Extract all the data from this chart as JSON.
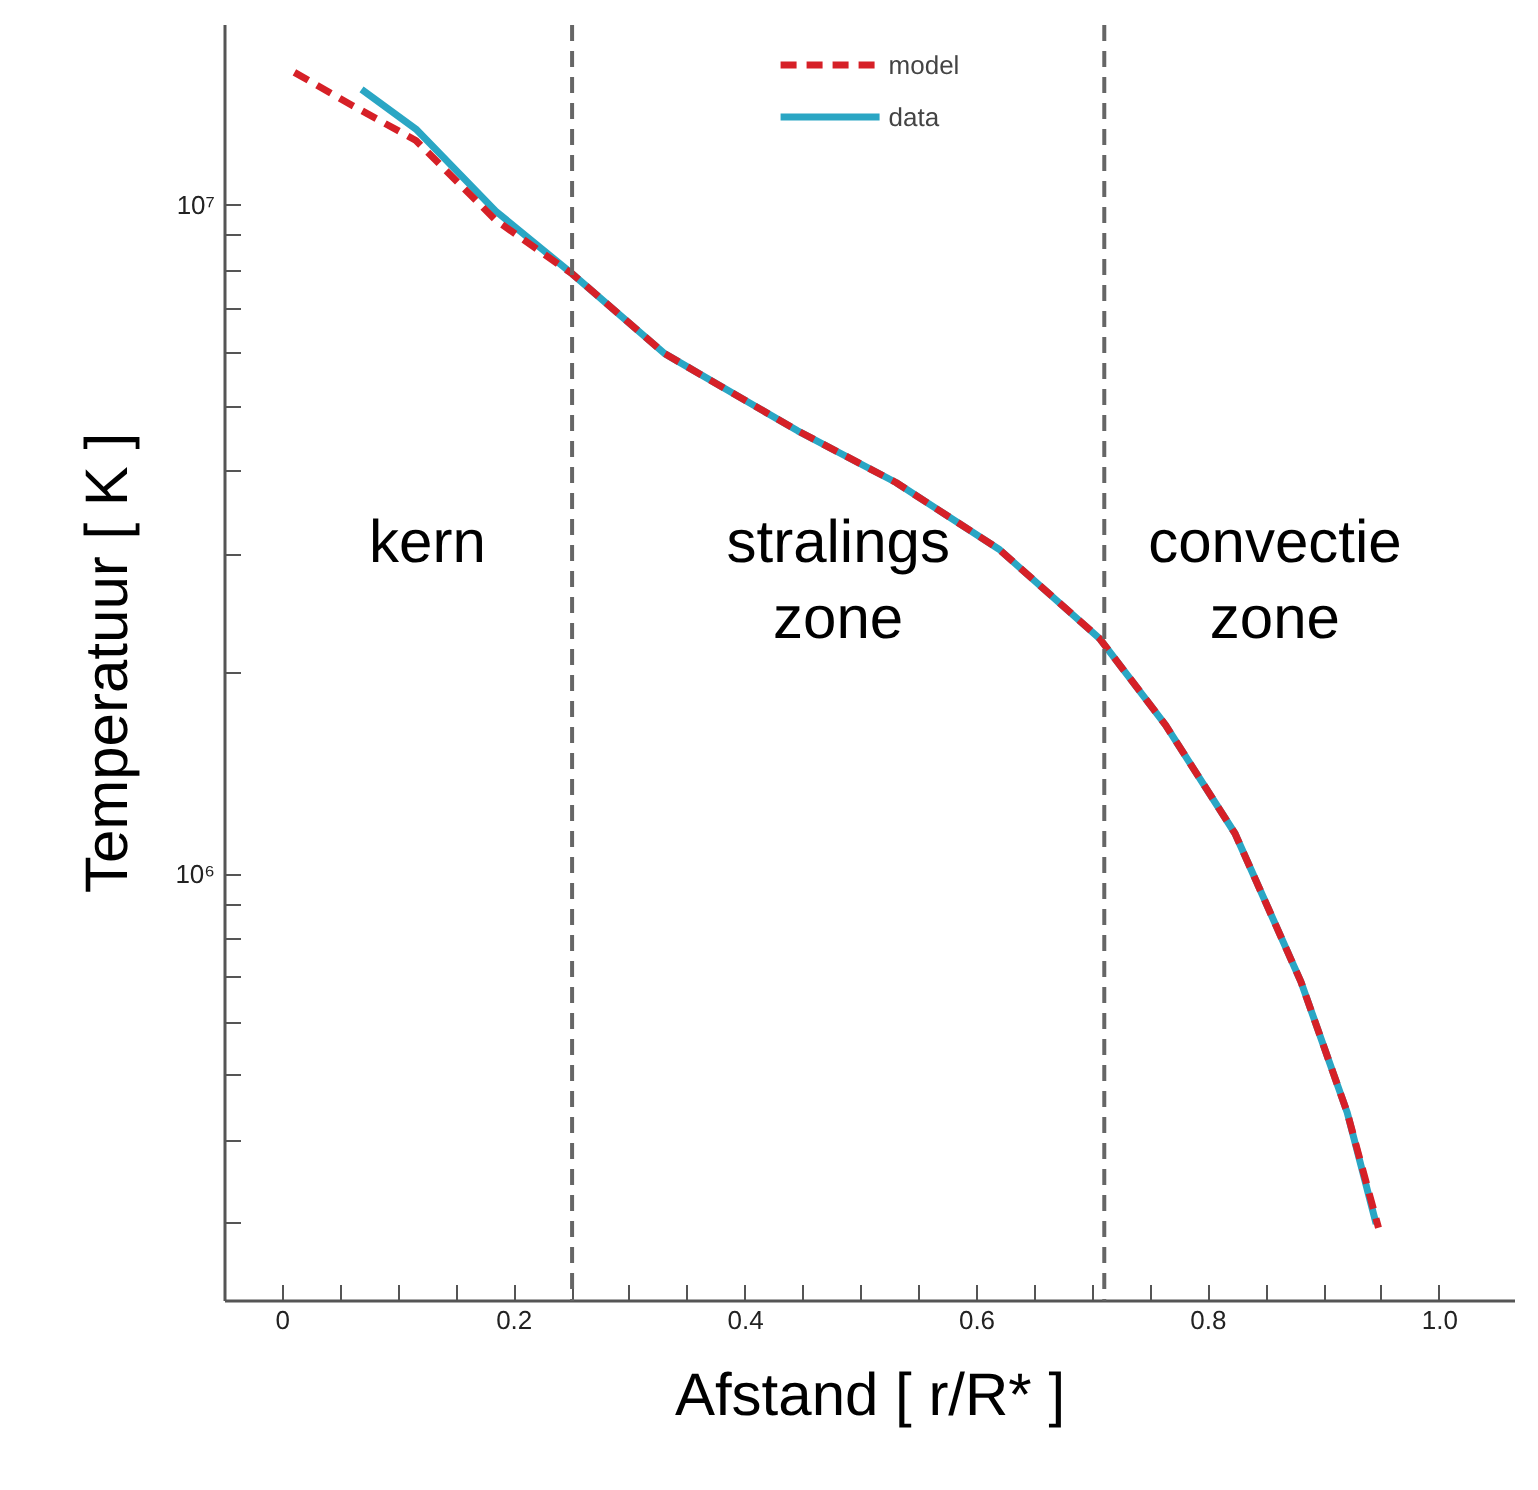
{
  "chart_data": {
    "type": "line",
    "xlabel": "Afstand [ r/R* ]",
    "ylabel": "Temperatuur [ K ]",
    "log": "y",
    "legend": "top",
    "grid": false,
    "xlim": [
      -0.05,
      1.065
    ],
    "ylim": [
      230000,
      18600000
    ],
    "xticks": [
      0,
      {
        "value": 0.05,
        "label": null
      },
      {
        "value": 0.1,
        "label": null
      },
      {
        "value": 0.15,
        "label": null
      },
      0.2,
      {
        "value": 0.25,
        "label": null
      },
      {
        "value": 0.3,
        "label": null
      },
      {
        "value": 0.35,
        "label": null
      },
      0.4,
      {
        "value": 0.45,
        "label": null
      },
      {
        "value": 0.5,
        "label": null
      },
      {
        "value": 0.55,
        "label": null
      },
      0.6,
      {
        "value": 0.65,
        "label": null
      },
      {
        "value": 0.7,
        "label": null
      },
      {
        "value": 0.75,
        "label": null
      },
      0.8,
      {
        "value": 0.85,
        "label": null
      },
      {
        "value": 0.9,
        "label": null
      },
      {
        "value": 0.95,
        "label": null
      },
      {
        "value": 1.0,
        "label": "1.0"
      }
    ],
    "yticks": [
      {
        "value": 300000,
        "label": null
      },
      {
        "value": 400000,
        "label": null
      },
      {
        "value": 500000,
        "label": null
      },
      {
        "value": 600000,
        "label": null
      },
      {
        "value": 700000,
        "label": null
      },
      {
        "value": 800000,
        "label": null
      },
      {
        "value": 900000,
        "label": null
      },
      {
        "value": 1000000,
        "label": "10⁶"
      },
      {
        "value": 2000000,
        "label": null
      },
      {
        "value": 3000000,
        "label": null
      },
      {
        "value": 4000000,
        "label": null
      },
      {
        "value": 5000000,
        "label": null
      },
      {
        "value": 6000000,
        "label": null
      },
      {
        "value": 7000000,
        "label": null
      },
      {
        "value": 8000000,
        "label": null
      },
      {
        "value": 9000000,
        "label": null
      },
      {
        "value": 10000000,
        "label": "10⁷"
      }
    ],
    "series": [
      {
        "name": "model",
        "color": "#d62027",
        "line_style": "dashed",
        "x": [
          0.01,
          0.06,
          0.115,
          0.184,
          0.25,
          0.33,
          0.445,
          0.53,
          0.619,
          0.706,
          0.763,
          0.823,
          0.88,
          0.92,
          0.947
        ],
        "values": [
          15800000,
          14100000,
          12500000,
          9500000,
          7900000,
          6000000,
          4600000,
          3850000,
          3060000,
          2250000,
          1670000,
          1150000,
          690000,
          440000,
          296000
        ]
      },
      {
        "name": "data",
        "color": "#2aa6c4",
        "line_style": "solid",
        "x": [
          0.068,
          0.115,
          0.184,
          0.25,
          0.33,
          0.445,
          0.53,
          0.619,
          0.706,
          0.763,
          0.823,
          0.88,
          0.92,
          0.945
        ],
        "values": [
          14900000,
          13000000,
          9800000,
          7900000,
          6000000,
          4600000,
          3850000,
          3060000,
          2250000,
          1670000,
          1150000,
          690000,
          440000,
          300000
        ]
      }
    ],
    "ref_lines": [
      {
        "axis": "x",
        "value": 0.25,
        "color": "#666666",
        "line_style": "dashed"
      },
      {
        "axis": "x",
        "value": 0.71,
        "color": "#666666",
        "line_style": "dashed"
      }
    ],
    "annotations": [
      "kern",
      "stralings\nzone",
      "convectie\nzone"
    ]
  }
}
